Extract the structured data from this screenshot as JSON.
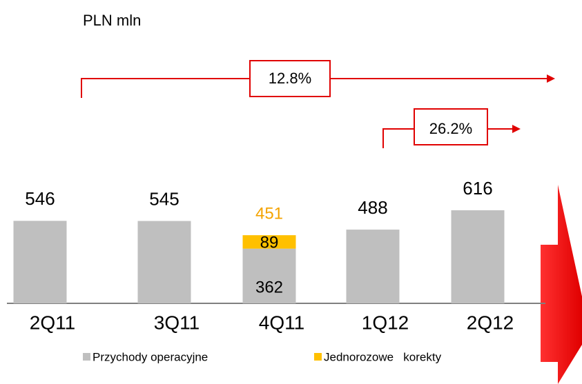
{
  "chart_data": {
    "type": "stacked_bar",
    "title": "PLN mln",
    "categories": [
      "2Q11",
      "3Q11",
      "4Q11",
      "1Q12",
      "2Q12"
    ],
    "series": [
      {
        "name": "Przychody operacyjne",
        "color": "#bfbfbf",
        "values": [
          546,
          545,
          362,
          488,
          616
        ]
      },
      {
        "name": "Jednorozowe   korekty",
        "color": "#ffc000",
        "values": [
          null,
          null,
          89,
          null,
          null
        ]
      }
    ],
    "totals": [
      546,
      545,
      451,
      488,
      616
    ],
    "annotations": [
      "12.8%",
      "26.2%"
    ]
  }
}
